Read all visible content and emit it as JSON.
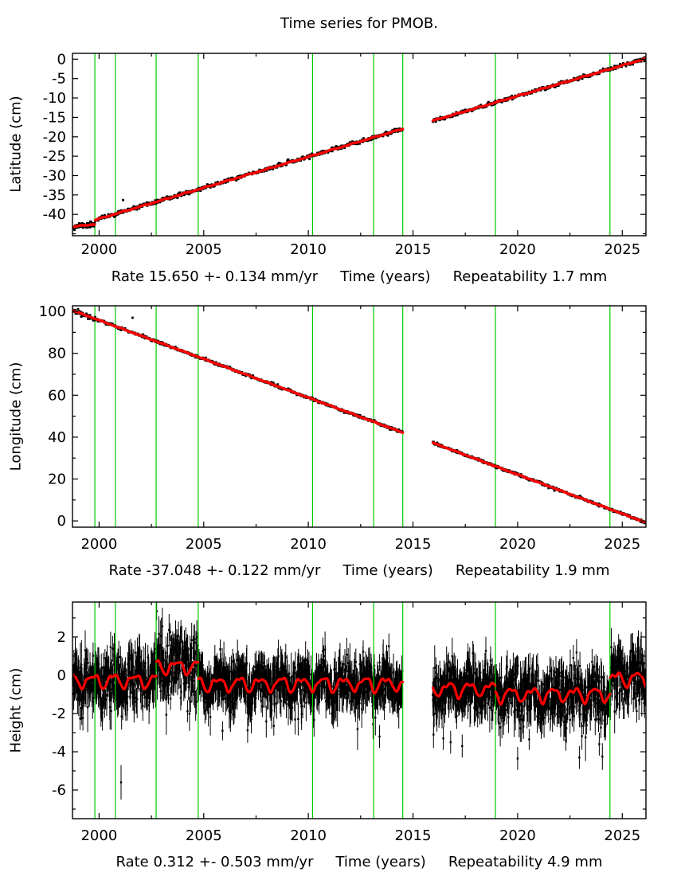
{
  "title": "Time series for PMOB.",
  "station": "PMOB",
  "colors": {
    "background": "#ffffff",
    "frame": "#000000",
    "scatter": "#000000",
    "model_line": "#ff0000",
    "event_line": "#00cd00"
  },
  "chart_data": [
    {
      "type": "scatter",
      "name": "latitude",
      "ylabel": "Latitude (cm)",
      "caption": {
        "rate": "Rate 15.650 +- 0.134 mm/yr",
        "xlabel": "Time (years)",
        "repeatability": "Repeatability 1.7 mm"
      },
      "rate_mm_per_yr": 15.65,
      "rate_sigma_mm_per_yr": 0.134,
      "repeatability_mm": 1.7,
      "xlim": [
        1998.73,
        2026.13
      ],
      "ylim": [
        -45.5,
        1.5
      ],
      "xticks": [
        2000,
        2005,
        2010,
        2015,
        2020,
        2025
      ],
      "xticks_minor": [
        2002.5,
        2007.5,
        2012.5,
        2017.5,
        2022.5
      ],
      "yticks": [
        0,
        -5,
        -10,
        -15,
        -20,
        -25,
        -30,
        -35,
        -40
      ],
      "yticks_minor": [
        -45
      ],
      "event_lines": [
        1999.8,
        2000.78,
        2002.73,
        2004.74,
        2010.2,
        2013.12,
        2014.51,
        2018.94,
        2024.41
      ],
      "events_over_scatter": false,
      "data_span": [
        1998.77,
        2026.12
      ],
      "data_gap": [
        2014.51,
        2015.93
      ],
      "model_segments": [
        {
          "t0": 1998.77,
          "t1": 1999.8,
          "v0": -43.15,
          "v1": -42.55
        },
        {
          "t0": 1999.8,
          "t1": 2014.51,
          "v0": -41.45,
          "v1": -17.95
        },
        {
          "t0": 2015.93,
          "t1": 2026.12,
          "v0": -15.9,
          "v1": 0.15
        }
      ],
      "model_wiggle_cm": [
        0.07,
        0.05
      ],
      "scatter": {
        "sample_dt_yr": 0.019,
        "noise_std_cm": 0.22,
        "noise_std_early_cm": 0.38,
        "early_until": 1999.8,
        "errorbar_cm": 0.12,
        "marker_px": 2.8,
        "seed": 11
      },
      "outliers": [
        [
          2001.15,
          -36.3,
          0.3
        ]
      ]
    },
    {
      "type": "scatter",
      "name": "longitude",
      "ylabel": "Longitude (cm)",
      "caption": {
        "rate": "Rate -37.048 +- 0.122 mm/yr",
        "xlabel": "Time (years)",
        "repeatability": "Repeatability 1.9 mm"
      },
      "rate_mm_per_yr": -37.048,
      "rate_sigma_mm_per_yr": 0.122,
      "repeatability_mm": 1.9,
      "xlim": [
        1998.73,
        2026.13
      ],
      "ylim": [
        -3.0,
        102.7
      ],
      "xticks": [
        2000,
        2005,
        2010,
        2015,
        2020,
        2025
      ],
      "xticks_minor": [
        2002.5,
        2007.5,
        2012.5,
        2017.5,
        2022.5
      ],
      "yticks": [
        100,
        80,
        60,
        40,
        20,
        0
      ],
      "yticks_minor": [
        90,
        70,
        50,
        30,
        10
      ],
      "event_lines": [
        1999.8,
        2000.78,
        2002.73,
        2004.74,
        2010.2,
        2013.12,
        2014.51,
        2018.94,
        2024.41
      ],
      "events_over_scatter": false,
      "data_span": [
        1998.77,
        2026.12
      ],
      "data_gap": [
        2014.51,
        2015.93
      ],
      "model_segments": [
        {
          "t0": 1998.77,
          "t1": 2014.51,
          "v0": 100.35,
          "v1": 42.2
        },
        {
          "t0": 2015.93,
          "t1": 2026.12,
          "v0": 37.35,
          "v1": -0.75
        }
      ],
      "model_wiggle_cm": [
        0.09,
        0.06
      ],
      "scatter": {
        "sample_dt_yr": 0.019,
        "noise_std_cm": 0.3,
        "noise_std_early_cm": 0.5,
        "early_until": 2000.0,
        "errorbar_cm": 0.18,
        "marker_px": 2.8,
        "seed": 22
      },
      "outliers": [
        [
          2001.6,
          97.0,
          0.3
        ]
      ]
    },
    {
      "type": "scatter",
      "name": "height",
      "ylabel": "Height (cm)",
      "caption": {
        "rate": "Rate 0.312 +- 0.503 mm/yr",
        "xlabel": "Time (years)",
        "repeatability": "Repeatability 4.9 mm"
      },
      "rate_mm_per_yr": 0.312,
      "rate_sigma_mm_per_yr": 0.503,
      "repeatability_mm": 4.9,
      "xlim": [
        1998.73,
        2026.13
      ],
      "ylim": [
        -7.5,
        3.83
      ],
      "xticks": [
        2000,
        2005,
        2010,
        2015,
        2020,
        2025
      ],
      "xticks_minor": [
        2002.5,
        2007.5,
        2012.5,
        2017.5,
        2022.5
      ],
      "yticks": [
        2,
        0,
        -2,
        -4,
        -6
      ],
      "yticks_minor": [
        3,
        1,
        -1,
        -3,
        -5,
        -7
      ],
      "event_lines": [
        1999.8,
        2000.78,
        2002.73,
        2004.74,
        2010.2,
        2013.12,
        2014.51,
        2018.94,
        2024.41
      ],
      "events_over_scatter": true,
      "data_span": [
        1998.77,
        2026.12
      ],
      "data_gap": [
        2014.51,
        2015.93
      ],
      "mean_segments": [
        [
          1998.77,
          2002.73,
          -0.28
        ],
        [
          2002.73,
          2004.74,
          0.45
        ],
        [
          2004.74,
          2014.51,
          -0.45
        ],
        [
          2015.93,
          2018.94,
          -0.72
        ],
        [
          2018.94,
          2024.41,
          -1.0
        ],
        [
          2024.41,
          2026.12,
          -0.18
        ]
      ],
      "noise_std_segments": [
        0.72,
        0.82,
        0.58,
        0.62,
        0.68,
        0.72
      ],
      "seasonal": {
        "amp1_cm": 0.32,
        "phase1_yr": 0.45,
        "amp2_cm": 0.12,
        "phase2_yr": 1.3
      },
      "scatter": {
        "sample_dt_yr": 0.0135,
        "errorbar_cm": 0.55,
        "marker_px": 2.4,
        "seed": 33
      },
      "outliers": [
        [
          2001.05,
          -5.6,
          0.9
        ],
        [
          2005.9,
          -2.9,
          0.5
        ],
        [
          2008.35,
          -2.65,
          0.5
        ],
        [
          2013.4,
          -3.2,
          0.6
        ],
        [
          2015.98,
          -3.1,
          0.7
        ],
        [
          2016.45,
          -3.3,
          0.6
        ],
        [
          2016.8,
          -3.5,
          0.6
        ],
        [
          2017.35,
          -3.7,
          0.6
        ],
        [
          2020.0,
          -4.35,
          0.6
        ],
        [
          2020.55,
          -3.35,
          0.55
        ],
        [
          2022.3,
          -3.4,
          0.55
        ],
        [
          2022.95,
          -4.3,
          0.6
        ],
        [
          2023.9,
          -3.6,
          0.6
        ],
        [
          2024.05,
          -4.25,
          0.7
        ]
      ]
    }
  ]
}
